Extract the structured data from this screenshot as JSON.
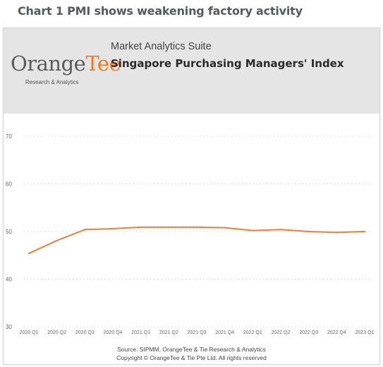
{
  "page": {
    "heading": "Chart 1 PMI shows weakening factory activity"
  },
  "header": {
    "logo_main": "Orange",
    "logo_accent": "Tee",
    "logo_sub": "Research & Analytics",
    "suite_label": "Market Analytics Suite"
  },
  "chart_data": {
    "type": "line",
    "title": "Singapore Purchasing Managers' Index",
    "xlabel": "",
    "ylabel": "",
    "categories": [
      "2020 Q1",
      "2020 Q2",
      "2020 Q3",
      "2020 Q4",
      "2021 Q1",
      "2021 Q2",
      "2021 Q3",
      "2021 Q4",
      "2022 Q1",
      "2022 Q2",
      "2022 Q3",
      "2022 Q4",
      "2023 Q1"
    ],
    "series": [
      {
        "name": "",
        "values": [
          45.4,
          48.1,
          50.4,
          50.6,
          50.9,
          50.9,
          50.9,
          50.8,
          50.2,
          50.4,
          50.0,
          49.8,
          50.0
        ]
      }
    ],
    "ylim": [
      30,
      70
    ],
    "yticks": [
      30,
      40,
      50,
      60,
      70
    ],
    "grid": true,
    "legend": "none",
    "colors": {
      "line": "#e8803e",
      "grid": "#d5d5d5",
      "tick_text": "#666666"
    }
  },
  "footer": {
    "source": "Source: SIPMM, OrangeTee & Tie Research & Analytics",
    "copyright": "Copyright © OrangeTee & Tie Pte Ltd. All rights reserved"
  }
}
